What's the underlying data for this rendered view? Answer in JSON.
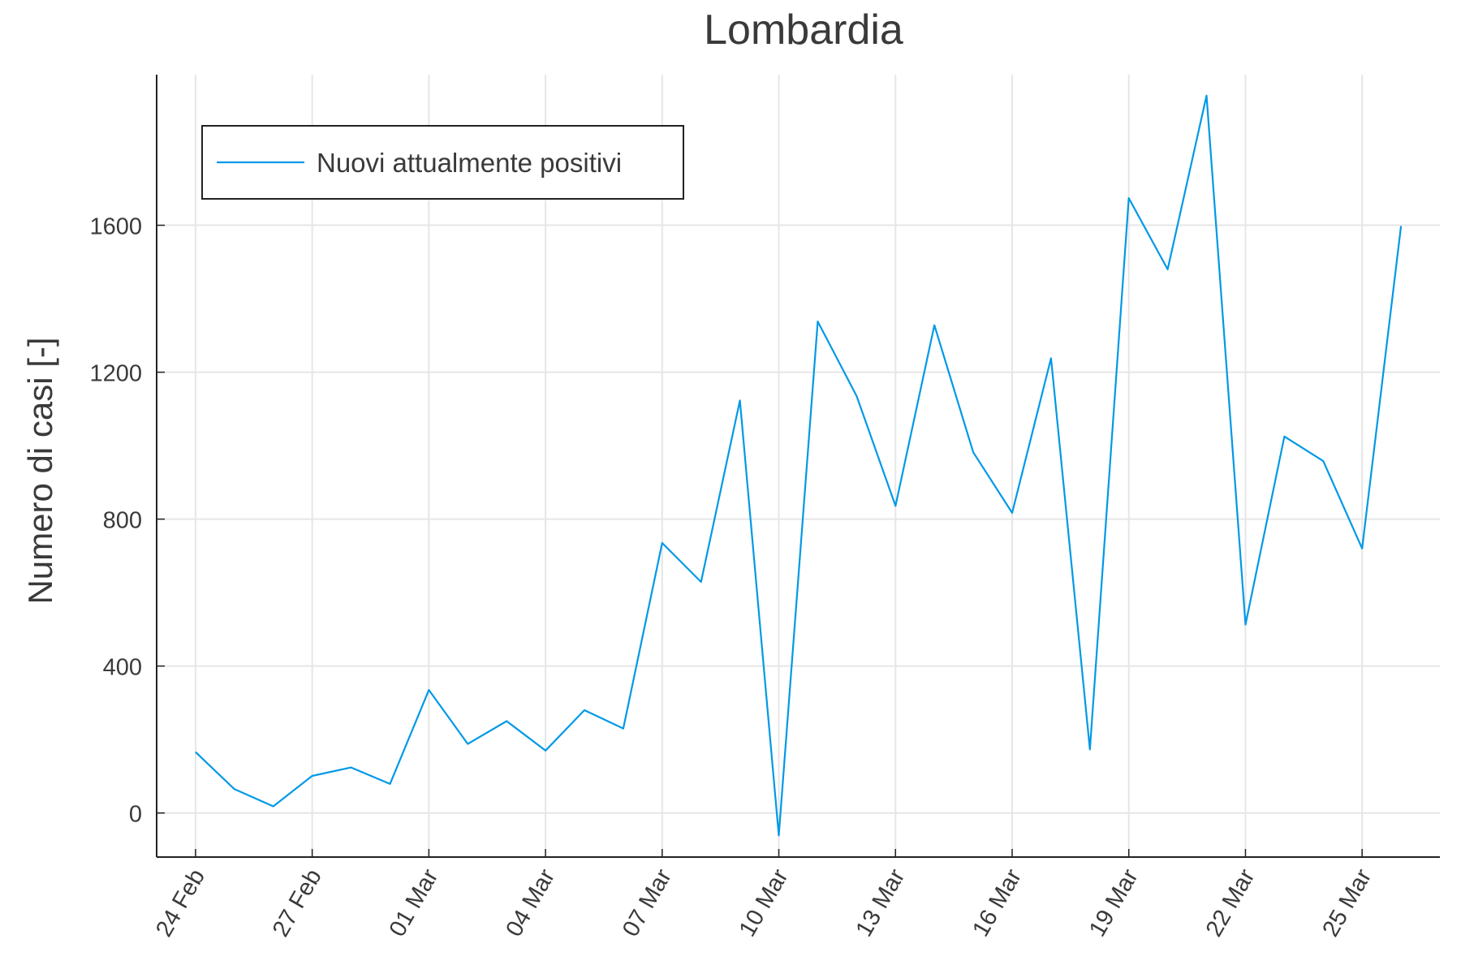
{
  "chart_data": {
    "type": "line",
    "title": "Lombardia",
    "xlabel": "",
    "ylabel": "Numero di casi [-]",
    "x_tick_labels": [
      "24 Feb",
      "27 Feb",
      "01 Mar",
      "04 Mar",
      "07 Mar",
      "10 Mar",
      "13 Mar",
      "16 Mar",
      "19 Mar",
      "22 Mar",
      "25 Mar"
    ],
    "y_ticks": [
      0,
      400,
      800,
      1200,
      1600
    ],
    "ylim": [
      -120,
      2010
    ],
    "xlim": [
      "2020-02-23",
      "2020-03-27"
    ],
    "grid": true,
    "legend_position": "top-left",
    "colors": {
      "series": "#0099e6",
      "grid": "#e6e6e6",
      "axis": "#222222",
      "text": "#3a3a3a"
    },
    "x": [
      "2020-02-24",
      "2020-02-25",
      "2020-02-26",
      "2020-02-27",
      "2020-02-28",
      "2020-02-29",
      "2020-03-01",
      "2020-03-02",
      "2020-03-03",
      "2020-03-04",
      "2020-03-05",
      "2020-03-06",
      "2020-03-07",
      "2020-03-08",
      "2020-03-09",
      "2020-03-10",
      "2020-03-11",
      "2020-03-12",
      "2020-03-13",
      "2020-03-14",
      "2020-03-15",
      "2020-03-16",
      "2020-03-17",
      "2020-03-18",
      "2020-03-19",
      "2020-03-20",
      "2020-03-21",
      "2020-03-22",
      "2020-03-23",
      "2020-03-24",
      "2020-03-25",
      "2020-03-26"
    ],
    "series": [
      {
        "name": "Nuovi attualmente positivi",
        "values": [
          166,
          65,
          18,
          101,
          124,
          79,
          335,
          188,
          250,
          170,
          280,
          230,
          735,
          629,
          1123,
          -61,
          1338,
          1135,
          836,
          1328,
          982,
          817,
          1238,
          173,
          1674,
          1480,
          1953,
          513,
          1025,
          958,
          720,
          1598
        ]
      }
    ]
  }
}
